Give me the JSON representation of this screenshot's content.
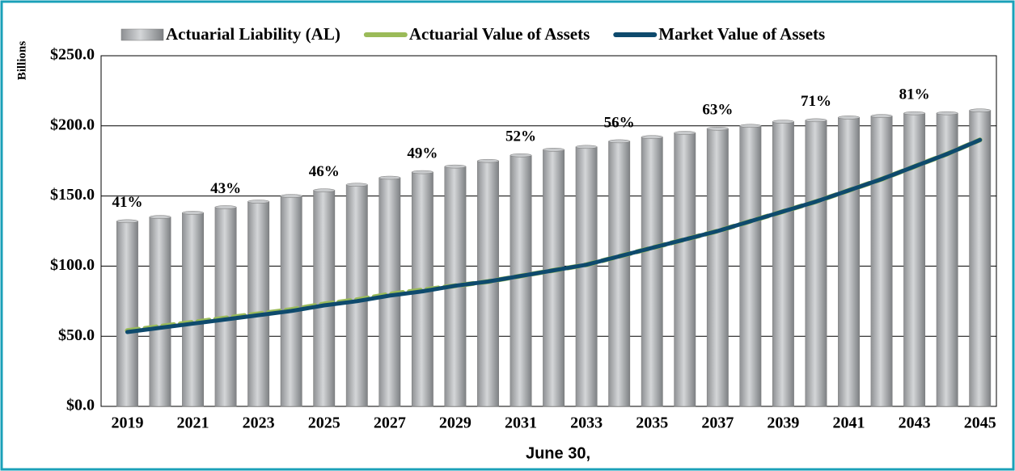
{
  "chart_data": {
    "type": "bar",
    "y_label": "Billions",
    "x_label": "June 30,",
    "x": [
      2019,
      2020,
      2021,
      2022,
      2023,
      2024,
      2025,
      2026,
      2027,
      2028,
      2029,
      2030,
      2031,
      2032,
      2033,
      2034,
      2035,
      2036,
      2037,
      2038,
      2039,
      2040,
      2041,
      2042,
      2043,
      2044,
      2045
    ],
    "xlim": [
      2018.2,
      2045.5
    ],
    "xticks": [
      2019,
      2021,
      2023,
      2025,
      2027,
      2029,
      2031,
      2033,
      2035,
      2037,
      2039,
      2041,
      2043,
      2045
    ],
    "ylim": [
      0,
      250
    ],
    "yticks": [
      {
        "value": 0,
        "label": "$0.0"
      },
      {
        "value": 50,
        "label": "$50.0"
      },
      {
        "value": 100,
        "label": "$100.0"
      },
      {
        "value": 150,
        "label": "$150.0"
      },
      {
        "value": 200,
        "label": "$200.0"
      },
      {
        "value": 250,
        "label": "$250.0"
      }
    ],
    "grid": true,
    "series": [
      {
        "name": "Actuarial Liability (AL)",
        "type": "bar",
        "color": "#a9abae",
        "values": [
          132,
          135,
          138,
          142,
          146,
          150,
          154,
          158,
          163,
          167,
          171,
          175,
          179,
          183,
          185,
          189,
          192,
          195,
          198,
          200,
          203,
          204,
          206,
          207,
          209,
          209,
          211
        ]
      },
      {
        "name": "Actuarial Value of Assets",
        "type": "dashed-line",
        "color": "#9bbb59",
        "values": [
          54,
          57,
          60,
          63,
          66,
          69,
          73,
          76,
          80,
          83,
          86,
          89,
          93,
          97,
          101,
          107,
          113,
          119,
          125,
          132,
          139,
          146,
          154,
          162,
          171,
          180,
          190
        ]
      },
      {
        "name": "Market Value of Assets",
        "type": "line",
        "color": "#0e4a6d",
        "values": [
          53,
          56,
          59,
          62,
          65,
          68,
          72,
          75,
          79,
          82,
          86,
          89,
          93,
          97,
          101,
          107,
          113,
          119,
          125,
          132,
          139,
          146,
          154,
          162,
          171,
          180,
          190
        ]
      }
    ],
    "annotations": [
      {
        "x": 2019,
        "text": "41%"
      },
      {
        "x": 2022,
        "text": "43%"
      },
      {
        "x": 2025,
        "text": "46%"
      },
      {
        "x": 2028,
        "text": "49%"
      },
      {
        "x": 2031,
        "text": "52%"
      },
      {
        "x": 2034,
        "text": "56%"
      },
      {
        "x": 2037,
        "text": "63%"
      },
      {
        "x": 2040,
        "text": "71%"
      },
      {
        "x": 2043,
        "text": "81%"
      }
    ]
  }
}
